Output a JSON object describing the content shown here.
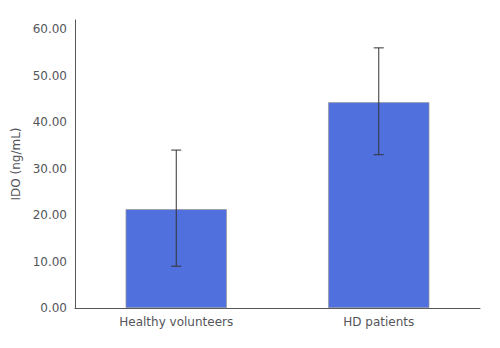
{
  "chart_data": {
    "type": "bar",
    "categories": [
      "Healthy volunteers",
      "HD patients"
    ],
    "values": [
      21.28,
      44.3
    ],
    "errors_lower": [
      12.28,
      11.3
    ],
    "errors_upper": [
      12.72,
      11.7
    ],
    "ylabel": "IDO (ng/mL)",
    "ylim": [
      0,
      62
    ],
    "yticks": [
      {
        "value": 0,
        "label": "0.00"
      },
      {
        "value": 10,
        "label": "10.00"
      },
      {
        "value": 20,
        "label": "20.00"
      },
      {
        "value": 30,
        "label": "30.00"
      },
      {
        "value": 40,
        "label": "40.00"
      },
      {
        "value": 50,
        "label": "50.00"
      },
      {
        "value": 60,
        "label": "60.00"
      }
    ],
    "grid": false
  }
}
